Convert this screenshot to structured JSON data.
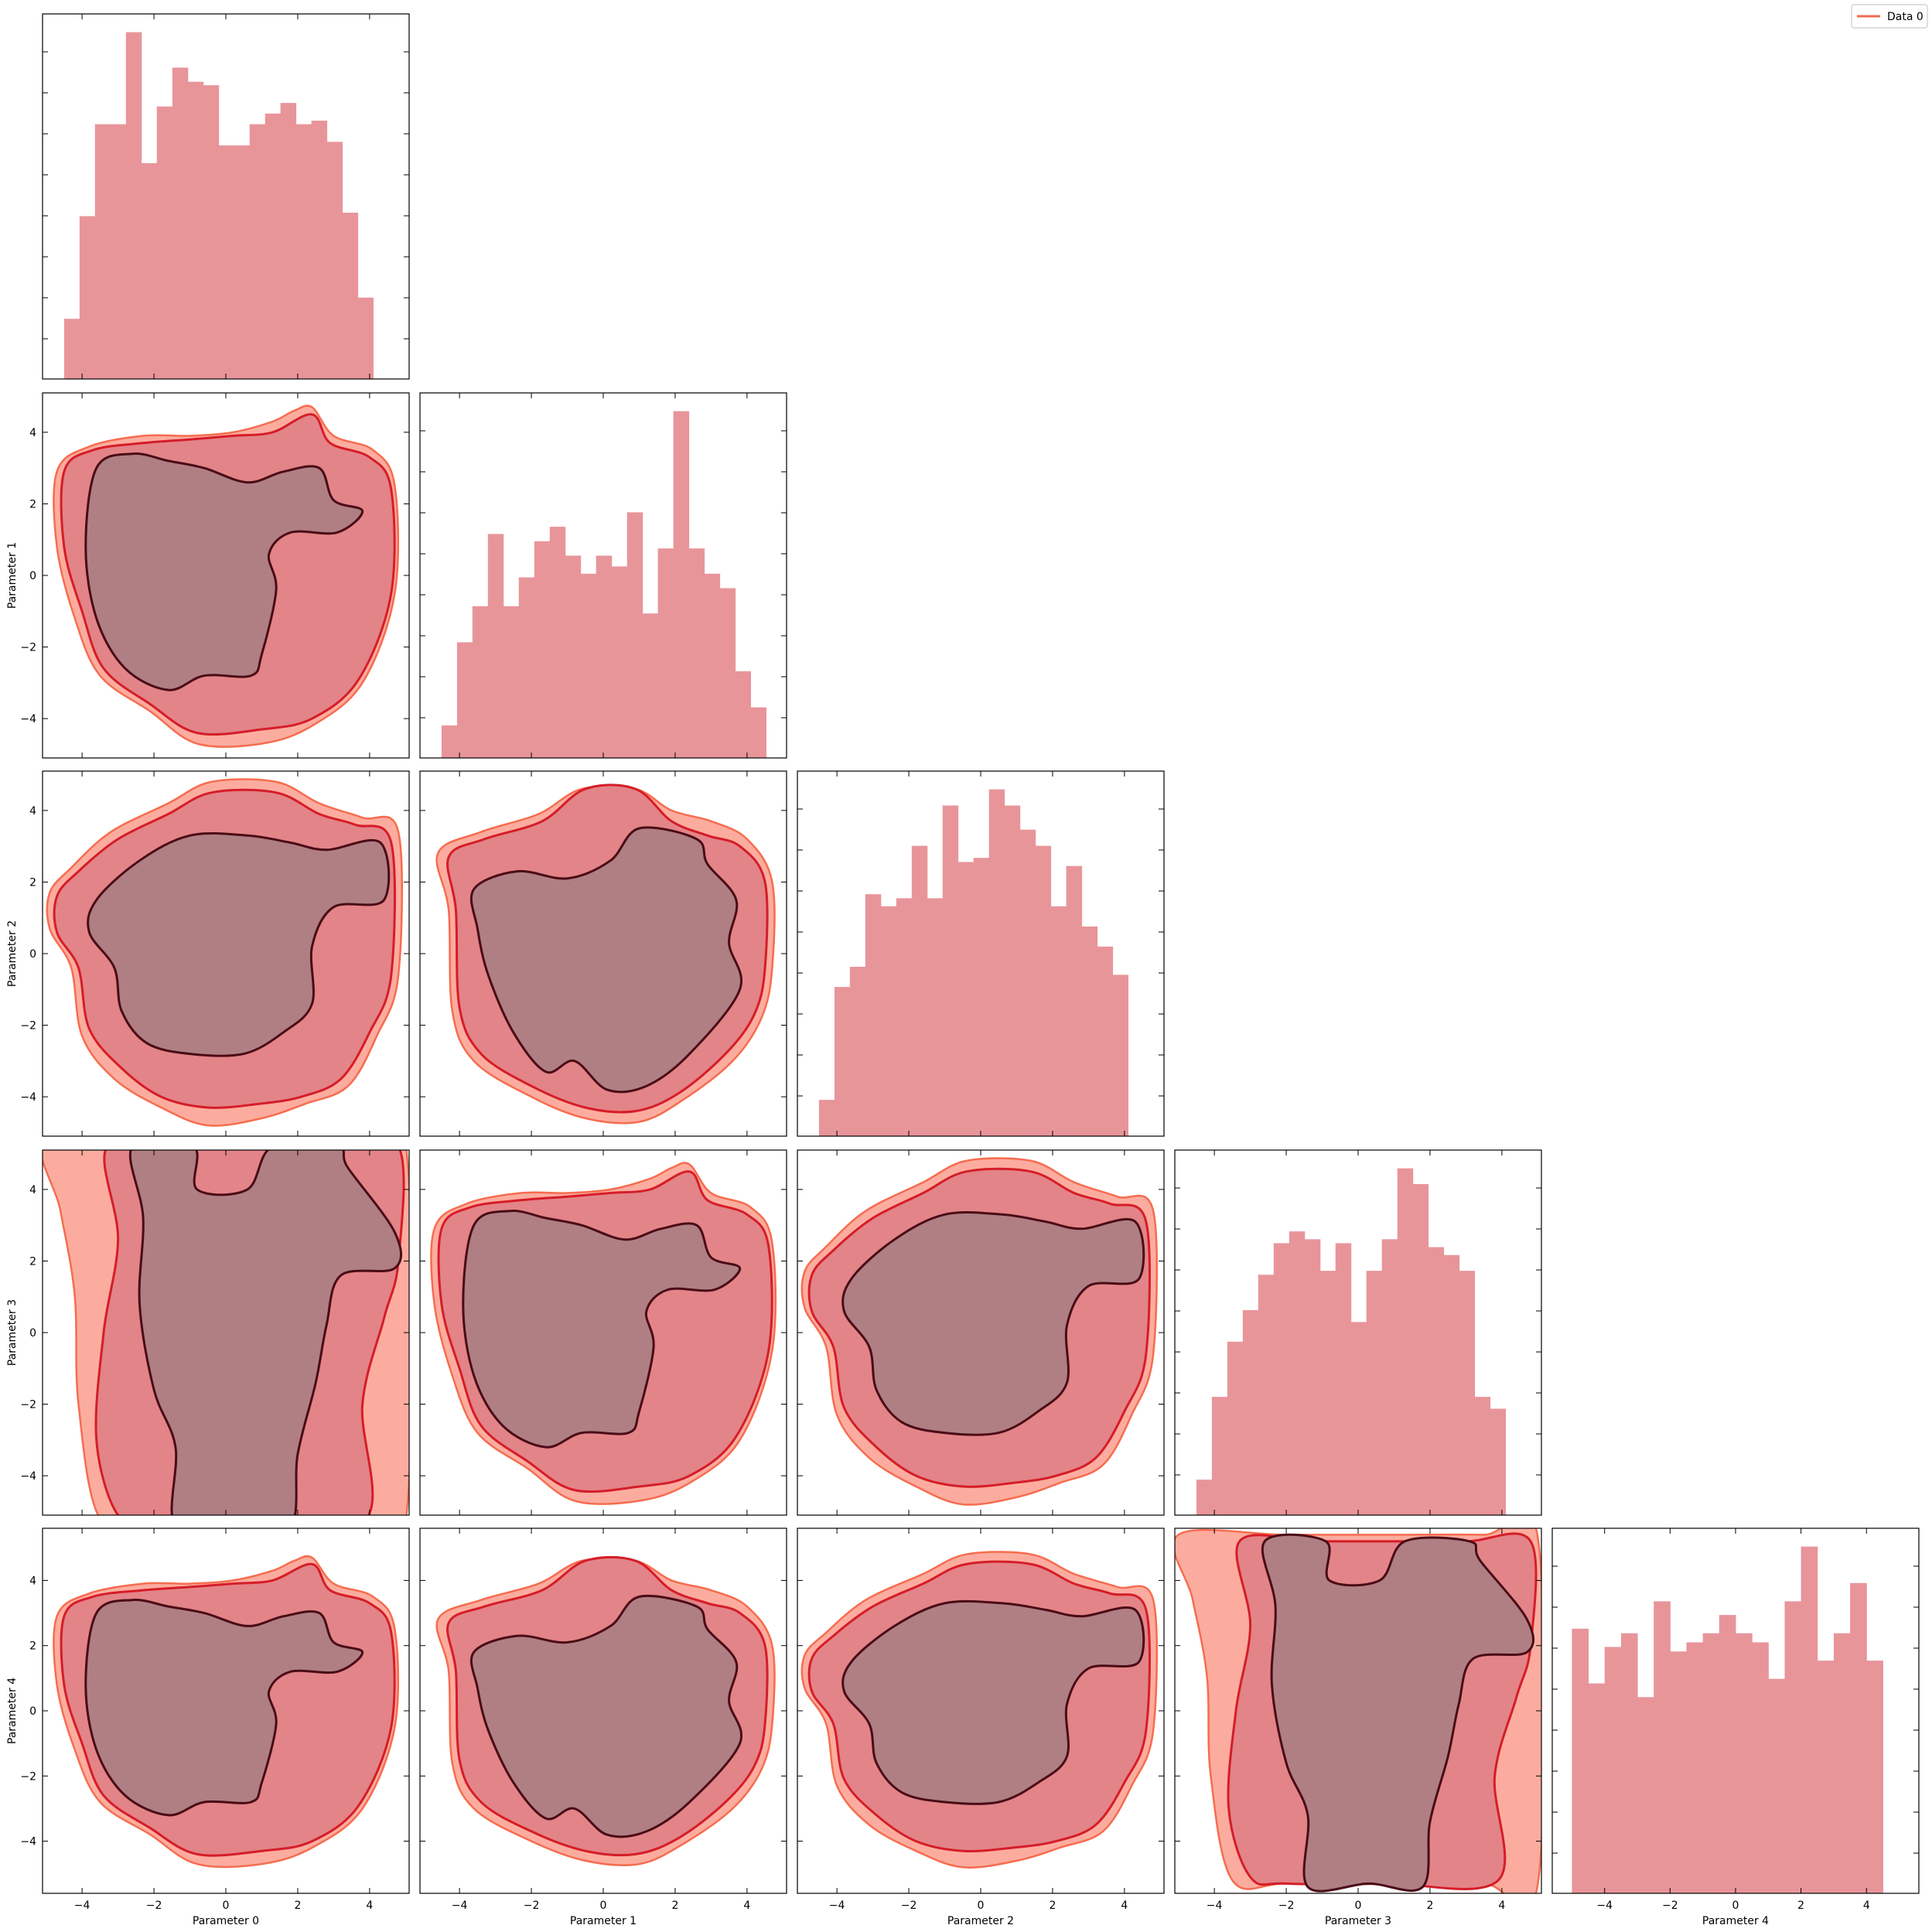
{
  "chart_data": {
    "type": "corner",
    "parameters": [
      "Parameter 0",
      "Parameter 1",
      "Parameter 2",
      "Parameter 3",
      "Parameter 4"
    ],
    "legend": {
      "entries": [
        {
          "name": "Data 0",
          "color": "#ef6c4f"
        }
      ],
      "placement": "top-right"
    },
    "colors": {
      "hist": "#e8959a",
      "contour_outer": "#fcac9f",
      "contour_mid": "#e38488",
      "contour_inner": "#b07f84",
      "line_outer": "#f66c4f",
      "line_mid": "#d51d28",
      "line_inner": "#4a0c16"
    },
    "axis_ticks": {
      "p0": [
        -4,
        -2,
        0,
        2,
        4
      ],
      "p1": [
        -4,
        -2,
        0,
        2,
        4
      ],
      "p2": [
        -4,
        -2,
        0,
        2,
        4
      ],
      "p3": [
        -4,
        -2,
        0,
        2,
        4
      ],
      "p4": [
        -4,
        -2,
        0,
        2,
        4
      ]
    },
    "axis_ranges": {
      "p0": [
        -5.1,
        5.1
      ],
      "p1": [
        -5.1,
        5.1
      ],
      "p2": [
        -5.1,
        5.1
      ],
      "p3": [
        -5.1,
        5.1
      ],
      "p4": [
        -5.6,
        5.6
      ]
    },
    "histograms": [
      {
        "parameter": "Parameter 0",
        "edges": [
          -4.5,
          -4.07,
          -3.64,
          -3.21,
          -2.78,
          -2.35,
          -1.92,
          -1.49,
          -1.06,
          -0.63,
          -0.2,
          0.23,
          0.66,
          1.09,
          1.52,
          1.95,
          2.38,
          2.81,
          3.24,
          3.67,
          4.1,
          4.53
        ],
        "counts": [
          0.17,
          0.46,
          0.72,
          0.72,
          0.98,
          0.61,
          0.77,
          0.88,
          0.84,
          0.83,
          0.66,
          0.66,
          0.72,
          0.75,
          0.78,
          0.72,
          0.73,
          0.67,
          0.47,
          0.23,
          0.0
        ]
      },
      {
        "parameter": "Parameter 1",
        "edges": [
          -4.5,
          -4.07,
          -3.64,
          -3.21,
          -2.78,
          -2.35,
          -1.92,
          -1.49,
          -1.06,
          -0.63,
          -0.2,
          0.23,
          0.66,
          1.09,
          1.52,
          1.95,
          2.38,
          2.81,
          3.24,
          3.67,
          4.1,
          4.53
        ],
        "counts": [
          0.09,
          0.32,
          0.42,
          0.62,
          0.42,
          0.5,
          0.6,
          0.64,
          0.56,
          0.51,
          0.56,
          0.53,
          0.68,
          0.4,
          0.58,
          0.96,
          0.58,
          0.51,
          0.47,
          0.24,
          0.14
        ]
      },
      {
        "parameter": "Parameter 2",
        "edges": [
          -4.5,
          -4.07,
          -3.64,
          -3.21,
          -2.78,
          -2.35,
          -1.92,
          -1.49,
          -1.06,
          -0.63,
          -0.2,
          0.23,
          0.66,
          1.09,
          1.52,
          1.95,
          2.38,
          2.81,
          3.24,
          3.67,
          4.1,
          4.53
        ],
        "counts": [
          0.09,
          0.37,
          0.42,
          0.6,
          0.57,
          0.59,
          0.72,
          0.59,
          0.82,
          0.68,
          0.69,
          0.86,
          0.82,
          0.76,
          0.72,
          0.57,
          0.67,
          0.52,
          0.47,
          0.4,
          0.0
        ]
      },
      {
        "parameter": "Parameter 3",
        "edges": [
          -4.5,
          -4.07,
          -3.64,
          -3.21,
          -2.78,
          -2.35,
          -1.92,
          -1.49,
          -1.06,
          -0.63,
          -0.2,
          0.23,
          0.66,
          1.09,
          1.52,
          1.95,
          2.38,
          2.81,
          3.24,
          3.67,
          4.1,
          4.53
        ],
        "counts": [
          0.09,
          0.3,
          0.44,
          0.52,
          0.61,
          0.69,
          0.72,
          0.7,
          0.62,
          0.69,
          0.49,
          0.62,
          0.7,
          0.88,
          0.84,
          0.68,
          0.66,
          0.62,
          0.3,
          0.27,
          0.0
        ]
      },
      {
        "parameter": "Parameter 4",
        "edges": [
          -5.0,
          -4.5,
          -4.0,
          -3.5,
          -3.0,
          -2.5,
          -2.0,
          -1.5,
          -1.0,
          -0.5,
          0.0,
          0.5,
          1.0,
          1.5,
          2.0,
          2.5,
          3.0,
          3.5,
          4.0,
          4.5,
          5.0
        ],
        "counts": [
          0.58,
          0.46,
          0.54,
          0.57,
          0.43,
          0.64,
          0.53,
          0.55,
          0.57,
          0.61,
          0.57,
          0.55,
          0.47,
          0.64,
          0.76,
          0.51,
          0.57,
          0.68,
          0.51,
          0.0
        ]
      }
    ],
    "contour_levels": [
      "outer",
      "mid",
      "inner"
    ],
    "contours": [
      {
        "x": "Parameter 0",
        "y": "Parameter 1",
        "outer": [
          [
            -4.7,
            2.9
          ],
          [
            -3.8,
            3.6
          ],
          [
            -2.3,
            3.9
          ],
          [
            -1.0,
            3.9
          ],
          [
            0.2,
            4.0
          ],
          [
            1.3,
            4.3
          ],
          [
            1.9,
            4.6
          ],
          [
            2.4,
            4.7
          ],
          [
            3.0,
            3.9
          ],
          [
            4.1,
            3.5
          ],
          [
            4.7,
            2.5
          ],
          [
            4.7,
            -0.5
          ],
          [
            3.8,
            -3.0
          ],
          [
            2.4,
            -4.2
          ],
          [
            1.0,
            -4.7
          ],
          [
            -0.8,
            -4.7
          ],
          [
            -2.1,
            -3.8
          ],
          [
            -3.5,
            -2.8
          ],
          [
            -4.2,
            -1.2
          ],
          [
            -4.7,
            0.8
          ]
        ],
        "mid": [
          [
            -4.5,
            2.9
          ],
          [
            -3.7,
            3.5
          ],
          [
            -2.3,
            3.7
          ],
          [
            -1.0,
            3.8
          ],
          [
            0.2,
            3.9
          ],
          [
            1.3,
            4.0
          ],
          [
            2.4,
            4.5
          ],
          [
            2.9,
            3.7
          ],
          [
            4.0,
            3.3
          ],
          [
            4.6,
            2.4
          ],
          [
            4.6,
            -0.5
          ],
          [
            3.7,
            -2.9
          ],
          [
            2.4,
            -4.0
          ],
          [
            1.0,
            -4.3
          ],
          [
            -0.8,
            -4.4
          ],
          [
            -2.1,
            -3.6
          ],
          [
            -3.4,
            -2.6
          ],
          [
            -4.0,
            -1.0
          ],
          [
            -4.5,
            0.8
          ]
        ],
        "inner": [
          [
            -3.6,
            3.0
          ],
          [
            -2.6,
            3.4
          ],
          [
            -1.6,
            3.2
          ],
          [
            -0.6,
            3.0
          ],
          [
            0.6,
            2.6
          ],
          [
            1.6,
            2.9
          ],
          [
            2.6,
            3.0
          ],
          [
            3.0,
            2.1
          ],
          [
            3.8,
            1.8
          ],
          [
            3.1,
            1.2
          ],
          [
            1.8,
            1.2
          ],
          [
            1.2,
            0.6
          ],
          [
            1.4,
            -0.4
          ],
          [
            1.0,
            -2.2
          ],
          [
            0.7,
            -2.8
          ],
          [
            -0.6,
            -2.8
          ],
          [
            -1.6,
            -3.2
          ],
          [
            -2.8,
            -2.6
          ],
          [
            -3.6,
            -1.2
          ],
          [
            -3.9,
            0.8
          ]
        ]
      },
      {
        "x": "Parameter 1",
        "y": "Parameter 2",
        "outer": [
          [
            -4.6,
            2.8
          ],
          [
            -3.4,
            3.4
          ],
          [
            -1.8,
            3.9
          ],
          [
            -0.6,
            4.6
          ],
          [
            0.9,
            4.6
          ],
          [
            1.9,
            4.0
          ],
          [
            3.0,
            3.7
          ],
          [
            4.0,
            3.2
          ],
          [
            4.7,
            2.0
          ],
          [
            4.7,
            -0.4
          ],
          [
            4.4,
            -1.8
          ],
          [
            3.6,
            -3.0
          ],
          [
            2.2,
            -4.1
          ],
          [
            1.0,
            -4.7
          ],
          [
            -0.5,
            -4.6
          ],
          [
            -2.0,
            -4.0
          ],
          [
            -3.6,
            -3.0
          ],
          [
            -4.2,
            -1.6
          ],
          [
            -4.3,
            1.2
          ]
        ],
        "mid": [
          [
            -4.3,
            2.7
          ],
          [
            -3.3,
            3.2
          ],
          [
            -1.7,
            3.7
          ],
          [
            -0.5,
            4.6
          ],
          [
            0.9,
            4.6
          ],
          [
            1.9,
            3.7
          ],
          [
            2.9,
            3.3
          ],
          [
            3.8,
            3.0
          ],
          [
            4.5,
            2.0
          ],
          [
            4.5,
            -0.4
          ],
          [
            4.2,
            -1.7
          ],
          [
            3.4,
            -2.8
          ],
          [
            2.1,
            -3.9
          ],
          [
            0.9,
            -4.4
          ],
          [
            -0.5,
            -4.3
          ],
          [
            -2.0,
            -3.7
          ],
          [
            -3.4,
            -2.8
          ],
          [
            -4.0,
            -1.5
          ],
          [
            -4.1,
            1.2
          ]
        ],
        "inner": [
          [
            -3.6,
            1.8
          ],
          [
            -2.4,
            2.3
          ],
          [
            -1.0,
            2.1
          ],
          [
            0.2,
            2.6
          ],
          [
            1.0,
            3.5
          ],
          [
            2.6,
            3.2
          ],
          [
            2.9,
            2.5
          ],
          [
            3.7,
            1.5
          ],
          [
            3.5,
            0.3
          ],
          [
            3.8,
            -1.0
          ],
          [
            2.4,
            -2.8
          ],
          [
            1.2,
            -3.7
          ],
          [
            0.1,
            -3.8
          ],
          [
            -0.8,
            -3.0
          ],
          [
            -1.6,
            -3.3
          ],
          [
            -2.5,
            -2.2
          ],
          [
            -3.2,
            -0.6
          ],
          [
            -3.5,
            0.7
          ]
        ]
      },
      {
        "x": "Parameter 2",
        "y": "Parameter 3",
        "outer": [
          [
            -4.9,
            1.7
          ],
          [
            -4.3,
            2.4
          ],
          [
            -3.2,
            3.4
          ],
          [
            -1.6,
            4.2
          ],
          [
            -0.4,
            4.8
          ],
          [
            1.4,
            4.8
          ],
          [
            2.6,
            4.2
          ],
          [
            3.8,
            3.8
          ],
          [
            4.8,
            3.4
          ],
          [
            4.8,
            -0.6
          ],
          [
            4.2,
            -2.3
          ],
          [
            3.4,
            -3.7
          ],
          [
            2.2,
            -4.2
          ],
          [
            1.0,
            -4.6
          ],
          [
            -0.5,
            -4.8
          ],
          [
            -1.8,
            -4.3
          ],
          [
            -3.1,
            -3.5
          ],
          [
            -4.0,
            -2.3
          ],
          [
            -4.3,
            -0.4
          ],
          [
            -4.9,
            0.7
          ]
        ],
        "mid": [
          [
            -4.7,
            1.6
          ],
          [
            -4.1,
            2.3
          ],
          [
            -3.0,
            3.2
          ],
          [
            -1.6,
            3.9
          ],
          [
            -0.4,
            4.5
          ],
          [
            1.4,
            4.5
          ],
          [
            2.6,
            3.9
          ],
          [
            3.6,
            3.6
          ],
          [
            4.6,
            3.1
          ],
          [
            4.6,
            -0.6
          ],
          [
            4.0,
            -2.2
          ],
          [
            3.2,
            -3.5
          ],
          [
            2.1,
            -4.0
          ],
          [
            0.9,
            -4.2
          ],
          [
            -0.5,
            -4.3
          ],
          [
            -1.8,
            -4.0
          ],
          [
            -2.9,
            -3.2
          ],
          [
            -3.8,
            -2.1
          ],
          [
            -4.1,
            -0.4
          ],
          [
            -4.7,
            0.6
          ]
        ],
        "inner": [
          [
            -3.6,
            1.5
          ],
          [
            -2.4,
            2.6
          ],
          [
            -1.0,
            3.3
          ],
          [
            0.6,
            3.3
          ],
          [
            1.8,
            3.1
          ],
          [
            2.8,
            2.9
          ],
          [
            4.3,
            3.1
          ],
          [
            4.4,
            1.5
          ],
          [
            3.0,
            1.3
          ],
          [
            2.4,
            0.2
          ],
          [
            2.4,
            -1.4
          ],
          [
            1.6,
            -2.2
          ],
          [
            0.5,
            -2.8
          ],
          [
            -1.0,
            -2.8
          ],
          [
            -2.2,
            -2.5
          ],
          [
            -2.9,
            -1.6
          ],
          [
            -3.1,
            -0.4
          ],
          [
            -3.8,
            0.6
          ]
        ]
      },
      {
        "x": "Parameter 3",
        "y": "Parameter 4",
        "outer": [
          [
            -5.0,
            5.4
          ],
          [
            -2.0,
            5.4
          ],
          [
            0.8,
            5.4
          ],
          [
            3.5,
            5.4
          ],
          [
            5.0,
            5.3
          ],
          [
            5.0,
            -5.3
          ],
          [
            3.5,
            -5.3
          ],
          [
            0.8,
            -5.3
          ],
          [
            -2.0,
            -5.3
          ],
          [
            -3.5,
            -5.2
          ],
          [
            -4.1,
            -2.0
          ],
          [
            -4.2,
            1.0
          ],
          [
            -4.6,
            3.4
          ]
        ],
        "mid": [
          [
            -3.3,
            5.2
          ],
          [
            -1.2,
            5.2
          ],
          [
            0.8,
            5.2
          ],
          [
            3.0,
            5.2
          ],
          [
            4.8,
            5.2
          ],
          [
            4.8,
            2.0
          ],
          [
            4.4,
            0.4
          ],
          [
            3.8,
            -2.0
          ],
          [
            3.9,
            -5.2
          ],
          [
            0.8,
            -5.3
          ],
          [
            -2.0,
            -5.3
          ],
          [
            -3.0,
            -5.1
          ],
          [
            -3.6,
            -3.0
          ],
          [
            -3.4,
            0.0
          ],
          [
            -3.0,
            2.6
          ]
        ],
        "inner": [
          [
            -2.6,
            5.2
          ],
          [
            -0.9,
            5.2
          ],
          [
            -0.8,
            4.0
          ],
          [
            0.6,
            4.0
          ],
          [
            1.3,
            5.2
          ],
          [
            3.1,
            5.2
          ],
          [
            3.4,
            4.6
          ],
          [
            4.7,
            2.8
          ],
          [
            4.7,
            1.8
          ],
          [
            3.2,
            1.6
          ],
          [
            2.8,
            0.2
          ],
          [
            2.5,
            -1.4
          ],
          [
            2.0,
            -3.4
          ],
          [
            1.8,
            -5.4
          ],
          [
            0.3,
            -5.3
          ],
          [
            -1.4,
            -5.4
          ],
          [
            -1.4,
            -3.2
          ],
          [
            -2.0,
            -1.6
          ],
          [
            -2.4,
            0.8
          ],
          [
            -2.3,
            3.2
          ]
        ]
      }
    ],
    "contour_pairs_shown": [
      "Parameter 0 vs Parameter 1",
      "Parameter 0 vs Parameter 2",
      "Parameter 1 vs Parameter 2",
      "Parameter 0 vs Parameter 3",
      "Parameter 1 vs Parameter 3",
      "Parameter 2 vs Parameter 3",
      "Parameter 0 vs Parameter 4",
      "Parameter 1 vs Parameter 4",
      "Parameter 2 vs Parameter 4",
      "Parameter 3 vs Parameter 4"
    ]
  }
}
